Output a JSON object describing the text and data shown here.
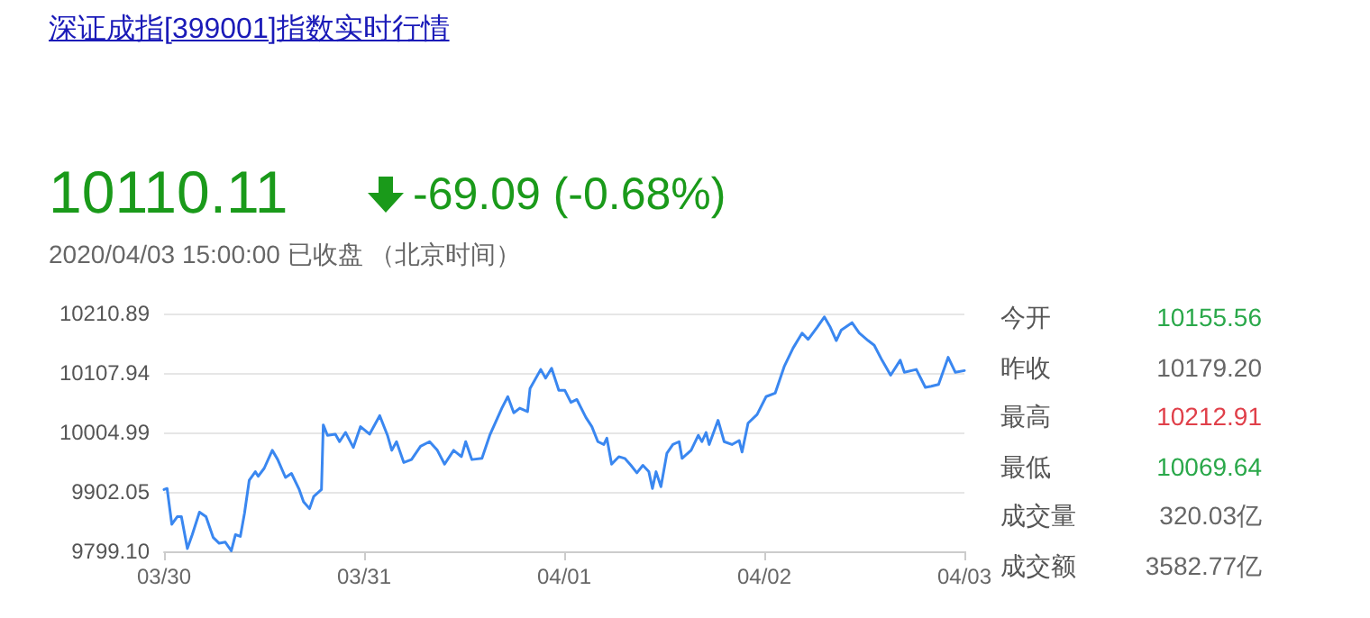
{
  "chart_data": {
    "type": "line",
    "title": "深证成指[399001]指数实时行情",
    "annotations": [
      "10110.11",
      "-69.09 (-0.68%)",
      "2020/04/03 15:00:00  已收盘 （北京时间）",
      "今开",
      "10155.56",
      "昨收",
      "10179.20",
      "最高",
      "10212.91",
      "最低",
      "10069.64",
      "成交量",
      "320.03亿",
      "成交额",
      "3582.77亿"
    ],
    "x": [
      "--03-30T00:00",
      "--03-30T00:22",
      "--03-30T00:56",
      "--03-30T01:35",
      "--03-30T02:05",
      "--03-30T02:48",
      "--03-30T03:23",
      "--03-30T04:15",
      "--03-30T05:02",
      "--03-30T05:54",
      "--03-30T06:37",
      "--03-30T07:21",
      "--03-30T08:04",
      "--03-30T08:34",
      "--03-30T09:09",
      "--03-30T09:39",
      "--03-30T10:13",
      "--03-30T10:57",
      "--03-30T11:18",
      "--03-30T12:01",
      "--03-30T12:59",
      "--03-30T13:38",
      "--03-30T14:34",
      "--03-30T15:17",
      "--03-30T16:13",
      "--03-30T16:44",
      "--03-30T17:27",
      "--03-30T17:57",
      "--03-30T18:53",
      "--03-30T19:06",
      "--03-30T19:36",
      "--03-30T20:33",
      "--03-30T21:03",
      "--03-30T21:46",
      "--03-30T22:42",
      "--03-30T23:34",
      "--03-31T00:39",
      "--03-31T01:52",
      "--03-31T02:48",
      "--03-31T03:19",
      "--03-31T03:53",
      "--03-31T04:45",
      "--03-31T05:41",
      "--03-31T06:46",
      "--03-31T07:51",
      "--03-31T08:47",
      "--03-31T09:39",
      "--03-31T10:44",
      "--03-31T11:40",
      "--03-31T12:11",
      "--03-31T12:55",
      "--03-31T14:08",
      "--03-31T15:04",
      "--03-31T16:31",
      "--03-31T17:14",
      "--03-31T17:57",
      "--03-31T18:40",
      "--03-31T19:36",
      "--03-31T19:54",
      "--03-31T21:11",
      "--03-31T21:46",
      "--03-31T22:29",
      "--03-31T23:21",
      "--04-01T00:04",
      "--04-01T00:48",
      "--04-01T01:31",
      "--04-01T02:36",
      "--04-01T03:19",
      "--04-01T04:02",
      "--04-01T04:45",
      "--04-01T05:07",
      "--04-01T05:41",
      "--04-01T06:33",
      "--04-01T07:16",
      "--04-01T08:00",
      "--04-01T08:43",
      "--04-01T09:26",
      "--04-01T10:09",
      "--04-01T10:35",
      "--04-01T11:01",
      "--04-01T11:36",
      "--04-01T12:19",
      "--04-01T13:02",
      "--04-01T13:47",
      "--04-01T14:08",
      "--04-01T15:13",
      "--04-01T16:05",
      "--04-01T16:31",
      "--04-01T17:01",
      "--04-01T17:23",
      "--04-01T18:27",
      "--04-01T19:11",
      "--04-01T20:07",
      "--04-01T20:59",
      "--04-01T21:20",
      "--04-01T22:03",
      "--04-01T23:08",
      "--04-02T00:13",
      "--04-02T01:18",
      "--04-02T02:23",
      "--04-02T03:27",
      "--04-02T04:32",
      "--04-02T05:15",
      "--04-02T06:20",
      "--04-02T07:12",
      "--04-02T07:55",
      "--04-02T08:38",
      "--04-02T09:13",
      "--04-02T10:31",
      "--04-02T11:23",
      "--04-02T12:27",
      "--04-02T13:11",
      "--04-02T14:07",
      "--04-02T15:09",
      "--04-02T16:18",
      "--04-02T16:48",
      "--04-02T18:14",
      "--04-02T19:19",
      "--04-02T20:02",
      "--04-02T20:54",
      "--04-02T22:03",
      "--04-02T22:55",
      "--04-03T00:00"
    ],
    "series": [
      {
        "color": "#3a87f0",
        "values": [
          9906,
          9908,
          9846,
          9859,
          9859,
          9804,
          9828,
          9867,
          9859,
          9823,
          9813,
          9815,
          9800,
          9828,
          9825,
          9865,
          9922,
          9937,
          9929,
          9943,
          9974,
          9958,
          9927,
          9934,
          9906,
          9885,
          9873,
          9894,
          9906,
          10018,
          10000,
          10002,
          9989,
          10005,
          9979,
          10015,
          10002,
          10034,
          10000,
          9974,
          9989,
          9953,
          9958,
          9981,
          9989,
          9974,
          9950,
          9974,
          9963,
          9989,
          9958,
          9960,
          10000,
          10047,
          10067,
          10039,
          10047,
          10041,
          10081,
          10114,
          10099,
          10116,
          10078,
          10078,
          10057,
          10062,
          10031,
          10015,
          9989,
          9984,
          9995,
          9950,
          9963,
          9960,
          9948,
          9935,
          9948,
          9937,
          9908,
          9937,
          9911,
          9969,
          9984,
          9989,
          9960,
          9974,
          10000,
          9989,
          10005,
          9984,
          10026,
          9989,
          9984,
          9991,
          9971,
          10021,
          10036,
          10067,
          10073,
          10119,
          10151,
          10177,
          10166,
          10187,
          10205,
          10187,
          10164,
          10182,
          10195,
          10177,
          10164,
          10156,
          10130,
          10104,
          10130,
          10109,
          10114,
          10083,
          10085,
          10088,
          10135,
          10109,
          10112
        ]
      }
    ],
    "xlim": [
      "--03-30",
      "--04-03"
    ],
    "xticks": [
      {
        "value": "--03-30",
        "label": "03/30"
      },
      {
        "value": "--03-31",
        "label": "03/31"
      },
      {
        "value": "--04-01",
        "label": "04/01"
      },
      {
        "value": "--04-02",
        "label": "04/02"
      },
      {
        "value": "--04-03",
        "label": "04/03"
      }
    ],
    "ylim": [
      9799.1,
      10210.89
    ],
    "yticks": [
      {
        "value": 9799.1,
        "label": "9799.10"
      },
      {
        "value": 9902.05,
        "label": "9902.05"
      },
      {
        "value": 10004.99,
        "label": "10004.99"
      },
      {
        "value": 10107.94,
        "label": "10107.94"
      },
      {
        "value": 10210.89,
        "label": "10210.89"
      }
    ],
    "grid": "y",
    "marker": "none",
    "line_style": "solid"
  }
}
